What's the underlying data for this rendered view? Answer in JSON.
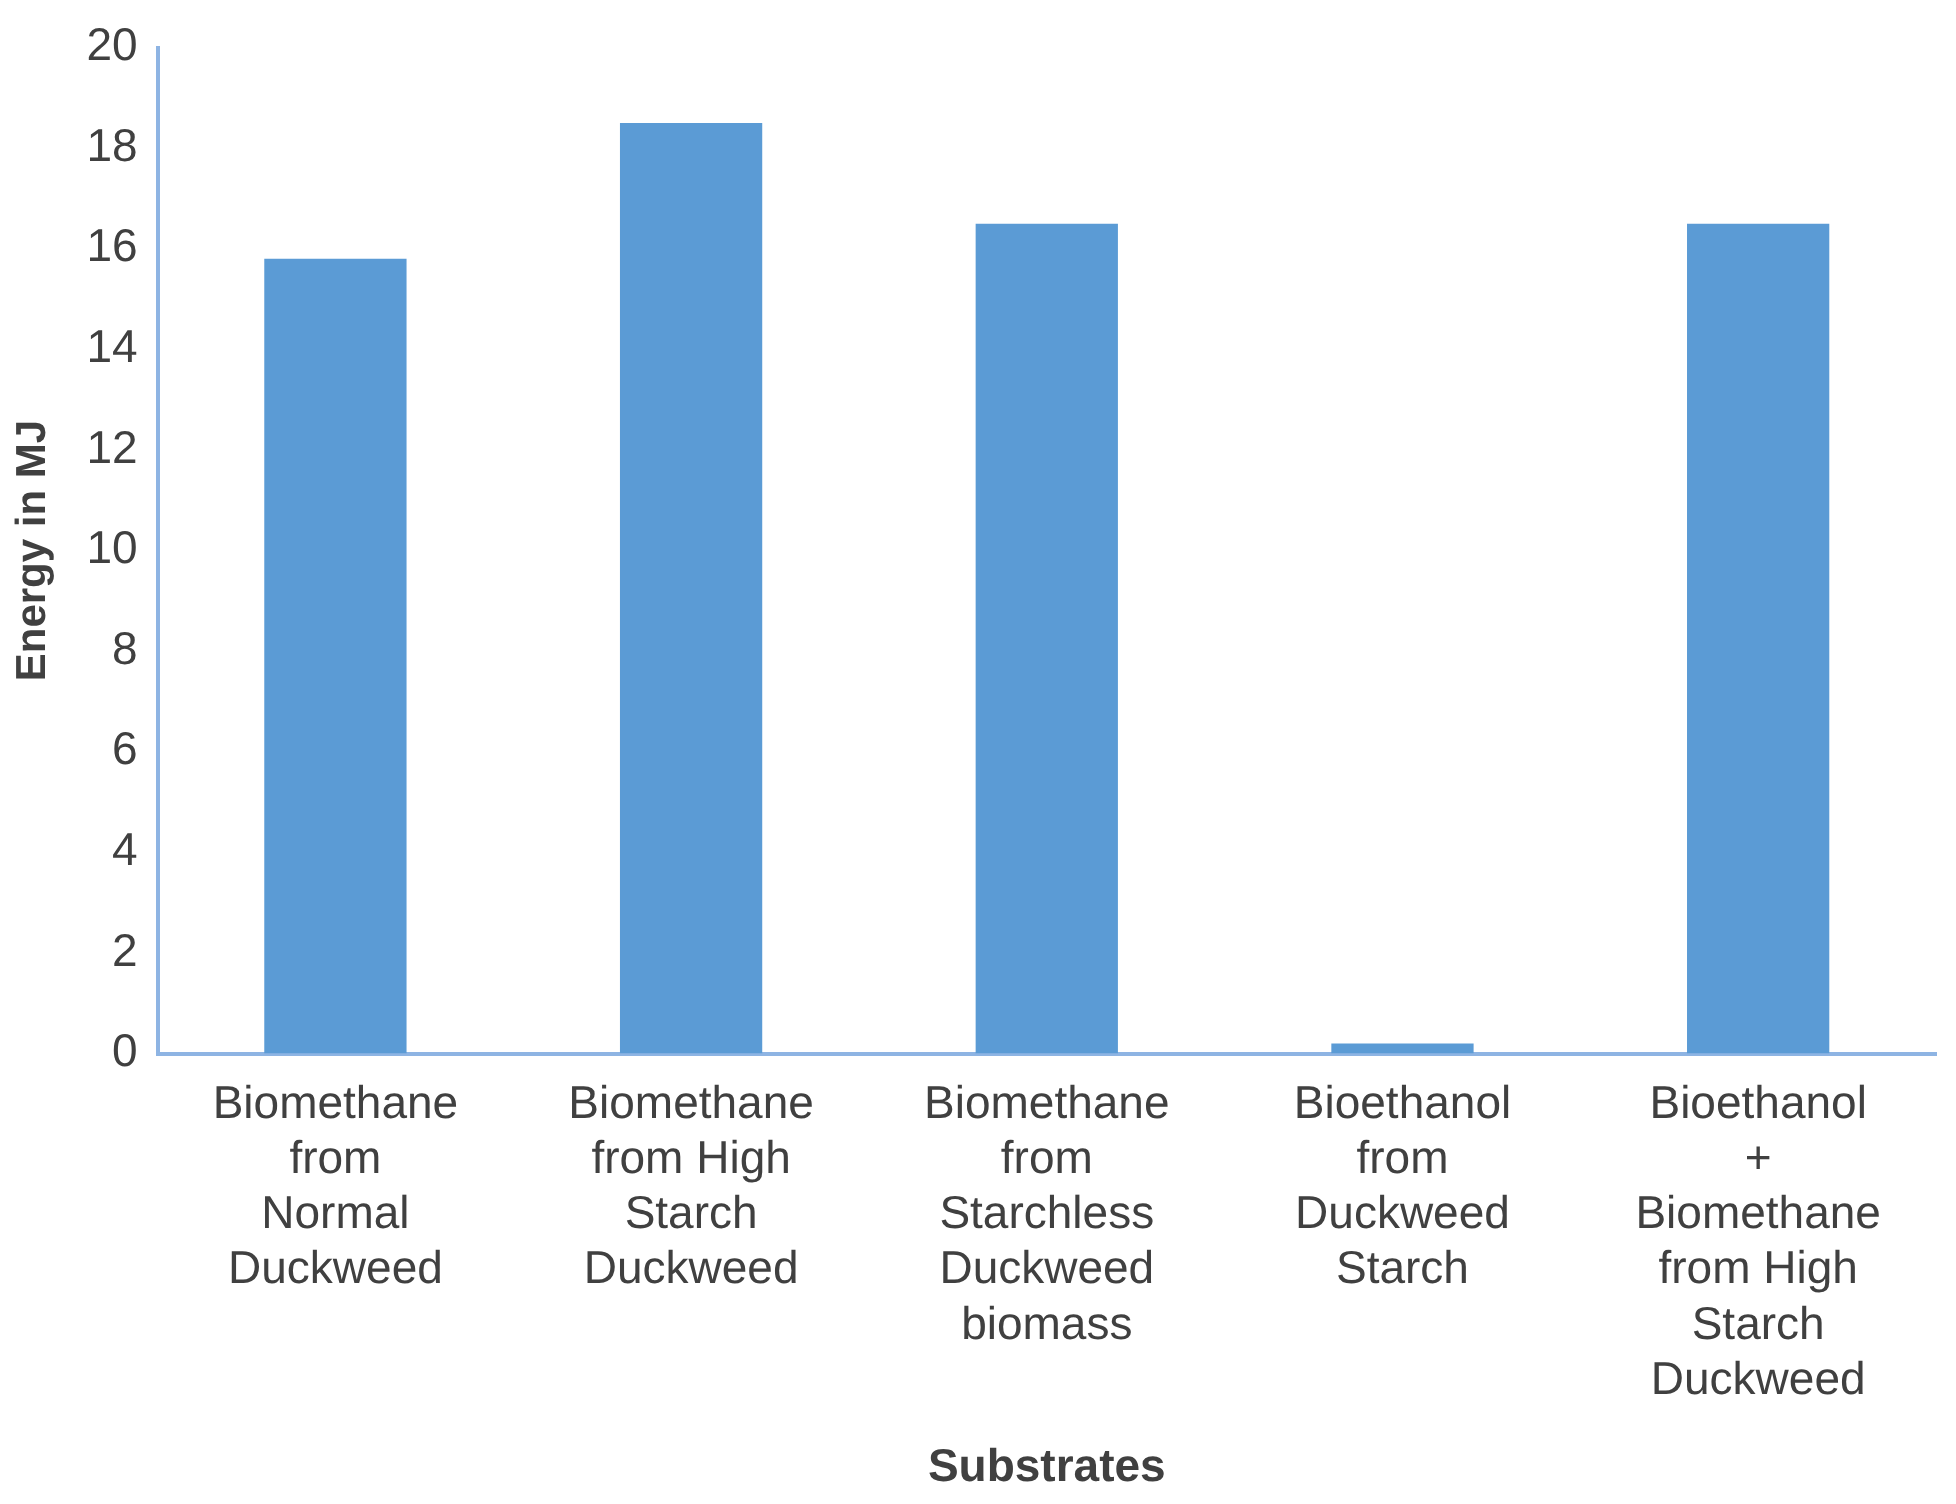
{
  "chart_data": {
    "type": "bar",
    "xlabel": "Substrates",
    "ylabel": "Energy in MJ",
    "categories": [
      "Biomethane from Normal Duckweed",
      "Biomethane from High Starch Duckweed",
      "Biomethane from Starchless Duckweed biomass",
      "Bioethanol from Duckweed Starch",
      "Bioethanol + Biomethane from High Starch Duckweed"
    ],
    "values": [
      15.8,
      18.5,
      16.5,
      0.2,
      16.5
    ],
    "color": "#5b9bd5",
    "ylim": [
      0,
      20
    ],
    "yticks": [
      0,
      2,
      4,
      6,
      8,
      10,
      12,
      14,
      16,
      18,
      20
    ],
    "grid": false,
    "legend": false
  }
}
